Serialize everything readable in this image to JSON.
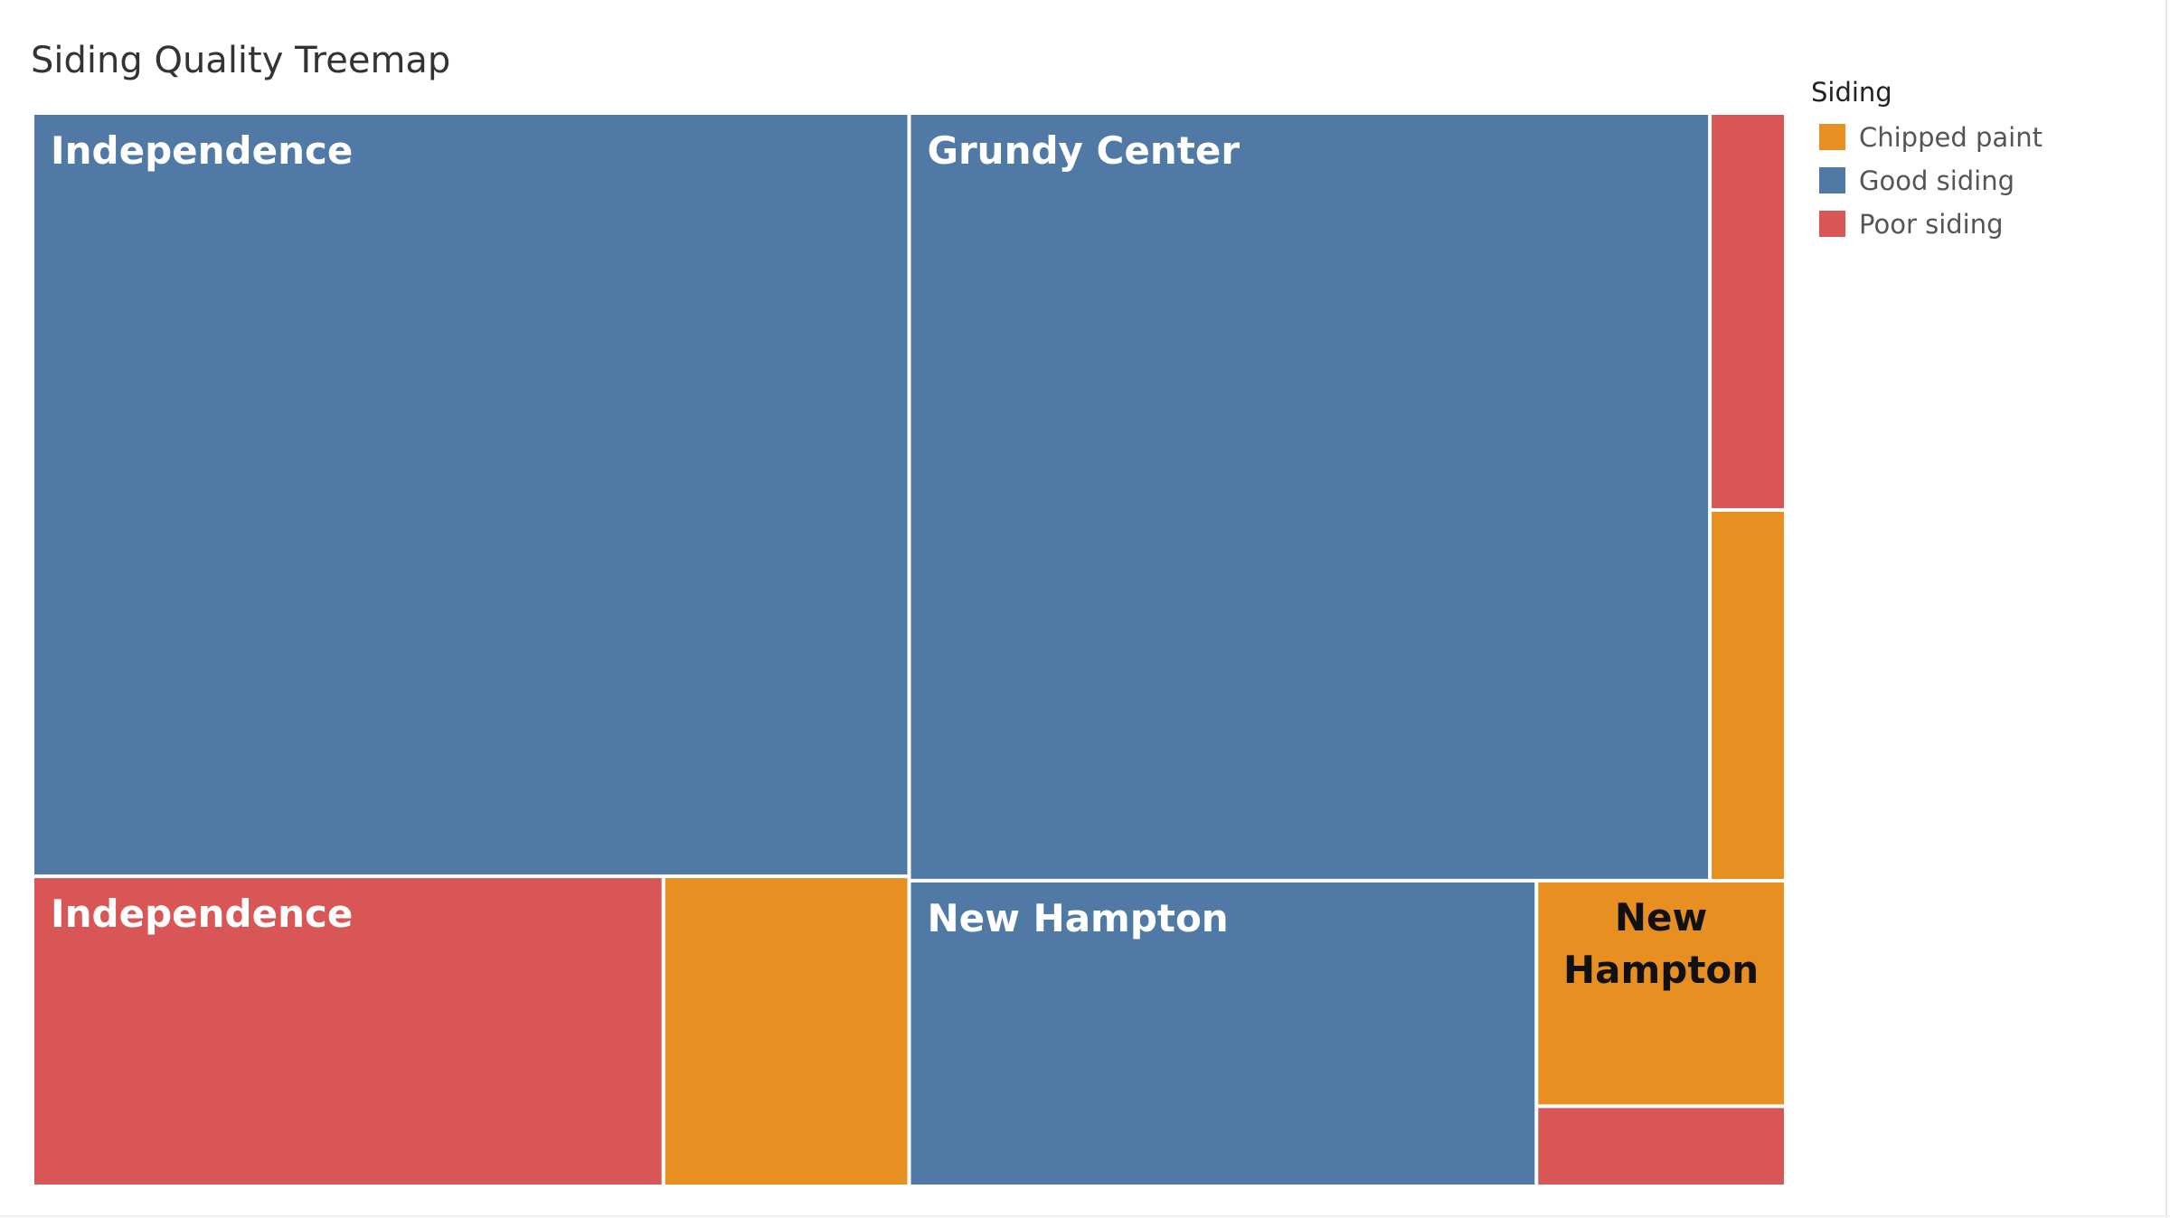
{
  "chart_data": {
    "type": "treemap",
    "title": "Siding Quality Treemap",
    "legend": {
      "title": "Siding",
      "position": "right",
      "entries": [
        {
          "name": "Chipped paint",
          "color": "#E88F22"
        },
        {
          "name": "Good siding",
          "color": "#5079A6"
        },
        {
          "name": "Poor siding",
          "color": "#D95656"
        }
      ]
    },
    "groups": [
      {
        "name": "Independence",
        "tiles": [
          {
            "label": "Independence",
            "category": "Good siding",
            "value": 347
          },
          {
            "label": "Independence",
            "category": "Poor siding",
            "value": 101
          },
          {
            "label": "",
            "category": "Chipped paint",
            "value": 39
          }
        ]
      },
      {
        "name": "Grundy Center",
        "tiles": [
          {
            "label": "Grundy Center",
            "category": "Good siding",
            "value": 320
          },
          {
            "label": "",
            "category": "Poor siding",
            "value": 15
          },
          {
            "label": "",
            "category": "Chipped paint",
            "value": 14
          }
        ]
      },
      {
        "name": "New Hampton",
        "tiles": [
          {
            "label": "New Hampton",
            "category": "Good siding",
            "value": 99
          },
          {
            "label": "New Hampton",
            "category": "Chipped paint",
            "value": 29
          },
          {
            "label": "",
            "category": "Poor siding",
            "value": 10
          }
        ]
      }
    ]
  }
}
